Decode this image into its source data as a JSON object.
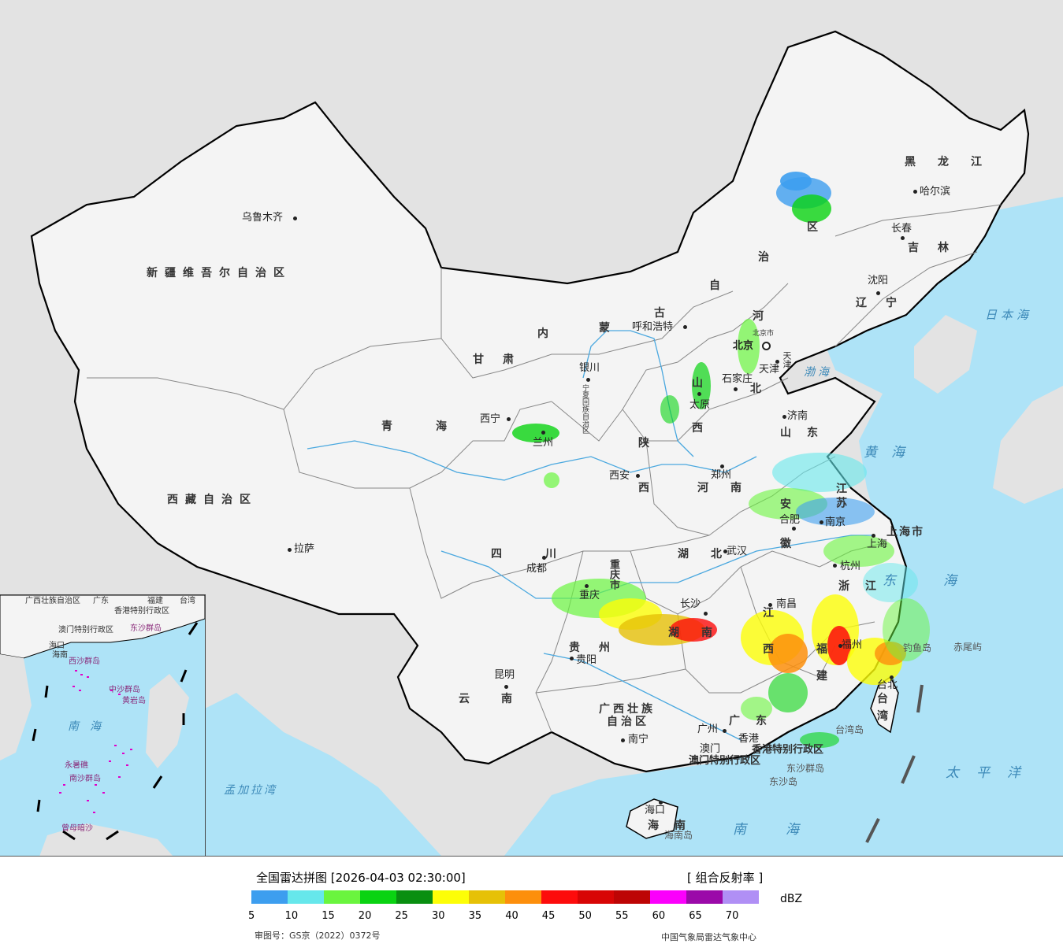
{
  "legend": {
    "title": "全国雷达拼图 [2026-04-03 02:30:00]",
    "product": "[ 组合反射率 ]",
    "unit": "dBZ",
    "scale": [
      {
        "value": "5",
        "color": "#3d9eef"
      },
      {
        "value": "10",
        "color": "#66e7eb"
      },
      {
        "value": "15",
        "color": "#6af53e"
      },
      {
        "value": "20",
        "color": "#0ad312"
      },
      {
        "value": "25",
        "color": "#098f11"
      },
      {
        "value": "30",
        "color": "#fdfe07"
      },
      {
        "value": "35",
        "color": "#e6c107"
      },
      {
        "value": "40",
        "color": "#fd8f0c"
      },
      {
        "value": "45",
        "color": "#fd0c0c"
      },
      {
        "value": "50",
        "color": "#d80505"
      },
      {
        "value": "55",
        "color": "#bd0404"
      },
      {
        "value": "60",
        "color": "#fb00fc"
      },
      {
        "value": "65",
        "color": "#9b0aa9"
      },
      {
        "value": "70",
        "color": "#b08ff5"
      }
    ],
    "map_review_no": "审图号：GS京（2022）0372号",
    "producer": "中国气象局雷达气象中心"
  },
  "cities": {
    "urumqi": "乌鲁木齐",
    "lhasa": "拉萨",
    "xining": "西宁",
    "lanzhou": "兰州",
    "yinchuan": "银川",
    "hohhot": "呼和浩特",
    "beijing": "北京",
    "tianjin": "天津",
    "shijiazhuang": "石家庄",
    "taiyuan": "太原",
    "jinan": "济南",
    "zhengzhou": "郑州",
    "xian": "西安",
    "chengdu": "成都",
    "chongqing": "重庆",
    "wuhan": "武汉",
    "hefei": "合肥",
    "nanjing": "南京",
    "shanghai": "上海",
    "hangzhou": "杭州",
    "nanchang": "南昌",
    "changsha": "长沙",
    "guiyang": "贵阳",
    "kunming": "昆明",
    "nanning": "南宁",
    "guangzhou": "广州",
    "fuzhou": "福州",
    "taipei": "台北",
    "haikou": "海口",
    "harbin": "哈尔滨",
    "changchun": "长春",
    "shenyang": "沈阳",
    "hongkong": "香港",
    "macau": "澳门"
  },
  "provinces": {
    "xinjiang": "新疆维吾尔自治区",
    "tibet": "西藏自治区",
    "qinghai": "青海",
    "gansu": "甘肃",
    "neimenggu_1": "内",
    "neimenggu_2": "蒙",
    "neimenggu_3": "古",
    "neimenggu_4": "自",
    "neimenggu_5": "治",
    "neimenggu_6": "区",
    "heilongjiang": "黑龙江",
    "jilin": "吉林",
    "liaoning": "辽宁",
    "hebei_1": "河",
    "hebei_2": "北",
    "shanxi_1": "山",
    "shanxi_2": "西",
    "shaanxi_1": "陕",
    "shaanxi_2": "西",
    "shandong": "山东",
    "henan": "河南",
    "jiangsu": "江苏",
    "anhui_1": "安",
    "anhui_2": "徽",
    "shanghai_shi": "上海市",
    "zhejiang": "浙江",
    "hubei": "湖北",
    "hunan": "湖南",
    "jiangxi_1": "江",
    "jiangxi_2": "西",
    "fujian_1": "福",
    "fujian_2": "建",
    "sichuan": "四川",
    "chongqing_shi": "重庆市",
    "guizhou": "贵州",
    "yunnan": "云南",
    "guangxi_1": "广西壮族",
    "guangxi_2": "自治区",
    "guangdong": "广东",
    "hainan": "海南",
    "taiwan_1": "台",
    "taiwan_2": "湾",
    "ningxia": "宁夏回族自治区",
    "hk_sar": "香港特别行政区",
    "macau_sar": "澳门特别行政区",
    "tianjin_shi": "天津",
    "beijing_shi": "北京市"
  },
  "seas": {
    "japan_sea": "日本海",
    "bohai": "渤海",
    "yellow_sea": "黄海",
    "east_sea": "东海",
    "pacific": "太平洋",
    "south_sea": "南海",
    "bengal": "孟加拉湾",
    "inset_south_sea": "南海"
  },
  "islands": {
    "chiwei": "赤尾屿",
    "diaoyu": "钓鱼岛",
    "taiwan_dao": "台湾岛",
    "dongsha_qundao": "东沙群岛",
    "dongsha_dao": "东沙岛",
    "hainan_dao": "海南岛"
  },
  "inset": {
    "guangdong": "广东",
    "guangxi": "广西壮族自治区",
    "hk": "香港特别行政区",
    "macau": "澳门特别行政区",
    "taiwan": "台湾",
    "fujian": "福建",
    "hainan": "海南",
    "dongsha": "东沙群岛",
    "xisha": "西沙群岛",
    "zhongsha": "中沙群岛",
    "huangyan": "黄岩岛",
    "nansha": "南沙群岛",
    "yongshu": "永暑礁",
    "zengmu": "曾母暗沙",
    "south_sea": "南海",
    "haikou": "海口"
  }
}
